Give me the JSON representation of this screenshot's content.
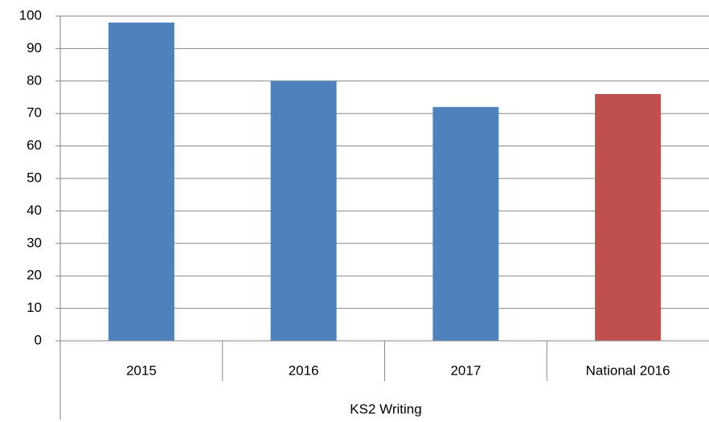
{
  "chart_data": {
    "type": "bar",
    "categories": [
      "2015",
      "2016",
      "2017",
      "National 2016"
    ],
    "values": [
      98,
      80,
      72,
      76
    ],
    "colors": [
      "#4f81bd",
      "#4f81bd",
      "#4f81bd",
      "#c0504d"
    ],
    "group_label": "KS2 Writing",
    "ylim": [
      0,
      100
    ],
    "yticks": [
      0,
      10,
      20,
      30,
      40,
      50,
      60,
      70,
      80,
      90,
      100
    ],
    "grid": true
  }
}
